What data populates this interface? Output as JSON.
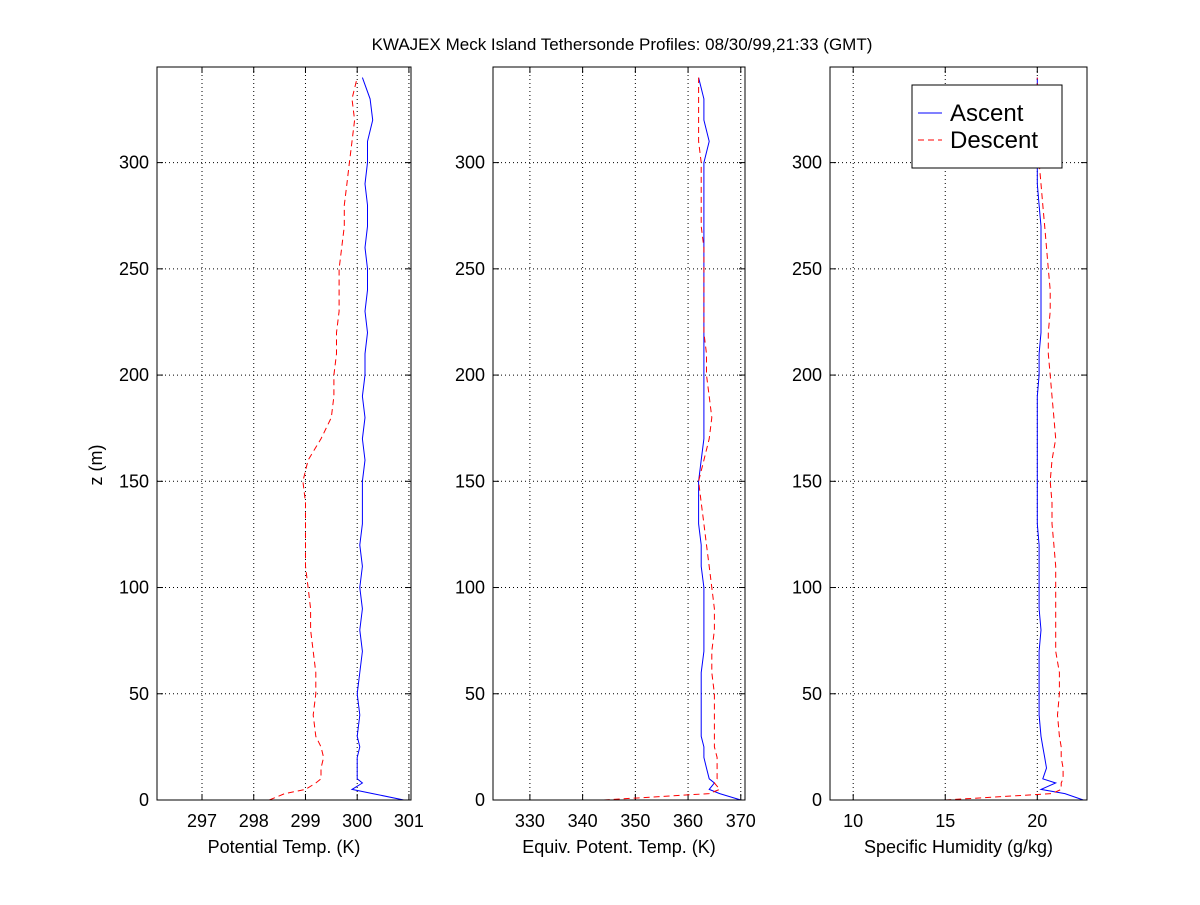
{
  "title": "KWAJEX Meck Island Tethersonde Profiles: 08/30/99,21:33 (GMT)",
  "chart_data": [
    {
      "type": "line",
      "xlabel": "Potential Temp. (K)",
      "ylabel": "z (m)",
      "xlim": [
        296.13,
        301.04
      ],
      "ylim": [
        0,
        345
      ],
      "xticks": [
        297,
        298,
        299,
        300,
        301
      ],
      "yticks": [
        0,
        50,
        100,
        150,
        200,
        250,
        300
      ],
      "grid": true,
      "series": [
        {
          "name": "Ascent",
          "color": "#0000ff",
          "style": "solid",
          "z": [
            0,
            3,
            5,
            8,
            10,
            15,
            20,
            25,
            30,
            40,
            50,
            60,
            70,
            80,
            90,
            100,
            110,
            120,
            130,
            140,
            150,
            160,
            170,
            180,
            190,
            200,
            210,
            220,
            230,
            240,
            250,
            260,
            270,
            280,
            290,
            300,
            310,
            320,
            330,
            340
          ],
          "x": [
            300.9,
            300.3,
            299.9,
            300.1,
            300.0,
            300.0,
            300.0,
            300.05,
            300.0,
            300.05,
            300.0,
            300.05,
            300.1,
            300.05,
            300.1,
            300.05,
            300.1,
            300.05,
            300.1,
            300.1,
            300.1,
            300.15,
            300.1,
            300.15,
            300.1,
            300.15,
            300.15,
            300.2,
            300.15,
            300.2,
            300.2,
            300.15,
            300.2,
            300.2,
            300.15,
            300.2,
            300.2,
            300.3,
            300.25,
            300.1
          ]
        },
        {
          "name": "Descent",
          "color": "#ff0000",
          "style": "dashed",
          "z": [
            0,
            3,
            5,
            8,
            10,
            15,
            20,
            25,
            30,
            40,
            50,
            60,
            70,
            80,
            90,
            100,
            110,
            120,
            130,
            140,
            150,
            160,
            170,
            180,
            190,
            200,
            210,
            220,
            230,
            240,
            250,
            260,
            270,
            280,
            290,
            300,
            310,
            320,
            330,
            340
          ],
          "x": [
            298.3,
            298.6,
            299.0,
            299.2,
            299.3,
            299.3,
            299.35,
            299.3,
            299.2,
            299.15,
            299.2,
            299.2,
            299.15,
            299.1,
            299.1,
            299.05,
            299.0,
            299.0,
            299.0,
            299.0,
            298.95,
            299.05,
            299.3,
            299.5,
            299.55,
            299.55,
            299.6,
            299.6,
            299.65,
            299.65,
            299.65,
            299.7,
            299.75,
            299.75,
            299.8,
            299.85,
            299.9,
            299.95,
            299.9,
            300.0
          ]
        }
      ]
    },
    {
      "type": "line",
      "xlabel": "Equiv. Potent. Temp. (K)",
      "xlim": [
        323,
        370.8
      ],
      "ylim": [
        0,
        345
      ],
      "xticks": [
        330,
        340,
        350,
        360,
        370
      ],
      "yticks": [
        0,
        50,
        100,
        150,
        200,
        250,
        300
      ],
      "grid": true,
      "series": [
        {
          "name": "Ascent",
          "color": "#0000ff",
          "style": "solid",
          "z": [
            0,
            3,
            5,
            8,
            10,
            15,
            20,
            25,
            30,
            40,
            50,
            60,
            70,
            80,
            90,
            100,
            110,
            120,
            130,
            140,
            150,
            160,
            170,
            180,
            190,
            200,
            210,
            220,
            230,
            240,
            250,
            260,
            270,
            280,
            290,
            300,
            310,
            320,
            330,
            340
          ],
          "x": [
            370,
            366,
            364,
            365,
            364,
            363.5,
            363,
            363,
            362.5,
            362.5,
            362.5,
            362.5,
            363,
            363,
            363,
            363,
            362.5,
            362.5,
            362,
            362,
            362,
            362.5,
            363,
            363,
            363,
            363,
            363,
            363,
            363,
            363,
            363,
            363,
            363,
            363,
            363,
            363,
            364,
            363,
            363,
            362
          ]
        },
        {
          "name": "Descent",
          "color": "#ff0000",
          "style": "dashed",
          "z": [
            0,
            3,
            5,
            8,
            10,
            15,
            20,
            25,
            30,
            40,
            50,
            60,
            70,
            80,
            90,
            100,
            110,
            120,
            130,
            140,
            150,
            160,
            170,
            180,
            190,
            200,
            210,
            220,
            230,
            240,
            250,
            260,
            270,
            280,
            290,
            300,
            310,
            320,
            330,
            340
          ],
          "x": [
            344,
            364,
            366,
            365,
            365.5,
            365.5,
            365.5,
            365,
            365,
            365,
            365,
            364.5,
            364.5,
            365,
            365,
            364.5,
            364,
            363.5,
            363,
            362.5,
            362,
            363,
            364,
            364.5,
            364,
            363.5,
            363.5,
            363,
            363,
            363,
            363,
            363,
            362.5,
            362.5,
            362.5,
            362.5,
            362,
            362,
            362,
            362
          ]
        }
      ]
    },
    {
      "type": "line",
      "xlabel": "Specific Humidity (g/kg)",
      "xlim": [
        8.74,
        22.7
      ],
      "ylim": [
        0,
        345
      ],
      "xticks": [
        10,
        15,
        20
      ],
      "yticks": [
        0,
        50,
        100,
        150,
        200,
        250,
        300
      ],
      "grid": true,
      "legend": {
        "placement": "top-right",
        "entries": [
          "Ascent",
          "Descent"
        ]
      },
      "series": [
        {
          "name": "Ascent",
          "color": "#0000ff",
          "style": "solid",
          "z": [
            0,
            3,
            5,
            8,
            10,
            15,
            20,
            25,
            30,
            40,
            50,
            60,
            70,
            80,
            90,
            100,
            110,
            120,
            130,
            140,
            150,
            160,
            170,
            180,
            190,
            200,
            210,
            220,
            230,
            240,
            250,
            260,
            270,
            280,
            290,
            300,
            310,
            320,
            330,
            340
          ],
          "x": [
            22.5,
            21.5,
            20.2,
            21,
            20.3,
            20.5,
            20.4,
            20.3,
            20.2,
            20.1,
            20.1,
            20.1,
            20.1,
            20.2,
            20.1,
            20.1,
            20.1,
            20.1,
            20.0,
            20.0,
            20.0,
            20.0,
            20.0,
            20.0,
            20.0,
            20.1,
            20.1,
            20.2,
            20.2,
            20.2,
            20.2,
            20.2,
            20.2,
            20.1,
            20.0,
            20.0,
            20.0,
            20.0,
            20.0,
            20.0
          ]
        },
        {
          "name": "Descent",
          "color": "#ff0000",
          "style": "dashed",
          "z": [
            0,
            3,
            5,
            8,
            10,
            15,
            20,
            25,
            30,
            40,
            50,
            60,
            70,
            80,
            90,
            100,
            110,
            120,
            130,
            140,
            150,
            160,
            170,
            180,
            190,
            200,
            210,
            220,
            230,
            240,
            250,
            260,
            270,
            280,
            290,
            300,
            310,
            320,
            330,
            340
          ],
          "x": [
            15,
            20.8,
            21.3,
            21.3,
            21.4,
            21.4,
            21.3,
            21.3,
            21.2,
            21.1,
            21.2,
            21.2,
            21.0,
            21.0,
            21.0,
            21.0,
            21.0,
            20.9,
            20.8,
            20.8,
            20.7,
            20.8,
            21.0,
            20.9,
            20.8,
            20.7,
            20.6,
            20.6,
            20.7,
            20.7,
            20.6,
            20.5,
            20.4,
            20.3,
            20.2,
            20.1,
            20.0,
            20.0,
            20.0,
            20.0
          ]
        }
      ]
    }
  ]
}
